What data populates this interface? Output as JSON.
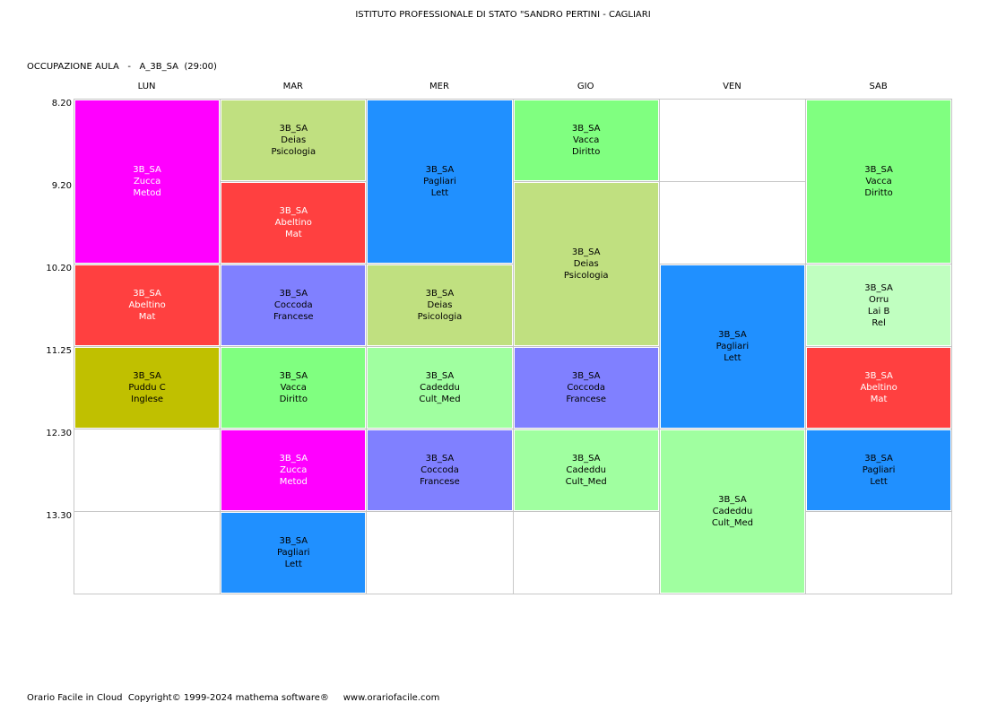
{
  "header": {
    "school": "ISTITUTO PROFESSIONALE DI STATO \"SANDRO PERTINI - CAGLIARI",
    "subtitle": "OCCUPAZIONE AULA   -   A_3B_SA  (29:00)"
  },
  "days": [
    "LUN",
    "MAR",
    "MER",
    "GIO",
    "VEN",
    "SAB"
  ],
  "times": [
    "8.20",
    "9.20",
    "10.20",
    "11.25",
    "12.30",
    "13.30"
  ],
  "lessons": [
    {
      "day": 0,
      "start": 0,
      "span": 2,
      "color": "#ff00ff",
      "text_color": "#ffffff",
      "lines": [
        "3B_SA",
        "Zucca",
        "Metod"
      ]
    },
    {
      "day": 0,
      "start": 2,
      "span": 1,
      "color": "#ff4040",
      "text_color": "#ffffff",
      "lines": [
        "3B_SA",
        "Abeltino",
        "Mat"
      ]
    },
    {
      "day": 0,
      "start": 3,
      "span": 1,
      "color": "#c0c000",
      "text_color": "#000000",
      "lines": [
        "3B_SA",
        "Puddu C",
        "Inglese"
      ]
    },
    {
      "day": 1,
      "start": 0,
      "span": 1,
      "color": "#c0e080",
      "text_color": "#000000",
      "lines": [
        "3B_SA",
        "Deias",
        "Psicologia"
      ]
    },
    {
      "day": 1,
      "start": 1,
      "span": 1,
      "color": "#ff4040",
      "text_color": "#ffffff",
      "lines": [
        "3B_SA",
        "Abeltino",
        "Mat"
      ]
    },
    {
      "day": 1,
      "start": 2,
      "span": 1,
      "color": "#8080ff",
      "text_color": "#000000",
      "lines": [
        "3B_SA",
        "Coccoda",
        "Francese"
      ]
    },
    {
      "day": 1,
      "start": 3,
      "span": 1,
      "color": "#80ff80",
      "text_color": "#000000",
      "lines": [
        "3B_SA",
        "Vacca",
        "Diritto"
      ]
    },
    {
      "day": 1,
      "start": 4,
      "span": 1,
      "color": "#ff00ff",
      "text_color": "#ffffff",
      "lines": [
        "3B_SA",
        "Zucca",
        "Metod"
      ]
    },
    {
      "day": 1,
      "start": 5,
      "span": 1,
      "color": "#2090ff",
      "text_color": "#000000",
      "lines": [
        "3B_SA",
        "Pagliari",
        "Lett"
      ]
    },
    {
      "day": 2,
      "start": 0,
      "span": 2,
      "color": "#2090ff",
      "text_color": "#000000",
      "lines": [
        "3B_SA",
        "Pagliari",
        "Lett"
      ]
    },
    {
      "day": 2,
      "start": 2,
      "span": 1,
      "color": "#c0e080",
      "text_color": "#000000",
      "lines": [
        "3B_SA",
        "Deias",
        "Psicologia"
      ]
    },
    {
      "day": 2,
      "start": 3,
      "span": 1,
      "color": "#a0ffa0",
      "text_color": "#000000",
      "lines": [
        "3B_SA",
        "Cadeddu",
        "Cult_Med"
      ]
    },
    {
      "day": 2,
      "start": 4,
      "span": 1,
      "color": "#8080ff",
      "text_color": "#000000",
      "lines": [
        "3B_SA",
        "Coccoda",
        "Francese"
      ]
    },
    {
      "day": 3,
      "start": 0,
      "span": 1,
      "color": "#80ff80",
      "text_color": "#000000",
      "lines": [
        "3B_SA",
        "Vacca",
        "Diritto"
      ]
    },
    {
      "day": 3,
      "start": 1,
      "span": 2,
      "color": "#c0e080",
      "text_color": "#000000",
      "lines": [
        "3B_SA",
        "Deias",
        "Psicologia"
      ]
    },
    {
      "day": 3,
      "start": 3,
      "span": 1,
      "color": "#8080ff",
      "text_color": "#000000",
      "lines": [
        "3B_SA",
        "Coccoda",
        "Francese"
      ]
    },
    {
      "day": 3,
      "start": 4,
      "span": 1,
      "color": "#a0ffa0",
      "text_color": "#000000",
      "lines": [
        "3B_SA",
        "Cadeddu",
        "Cult_Med"
      ]
    },
    {
      "day": 4,
      "start": 2,
      "span": 2,
      "color": "#2090ff",
      "text_color": "#000000",
      "lines": [
        "3B_SA",
        "Pagliari",
        "Lett"
      ]
    },
    {
      "day": 4,
      "start": 4,
      "span": 2,
      "color": "#a0ffa0",
      "text_color": "#000000",
      "lines": [
        "3B_SA",
        "Cadeddu",
        "Cult_Med"
      ]
    },
    {
      "day": 5,
      "start": 0,
      "span": 2,
      "color": "#80ff80",
      "text_color": "#000000",
      "lines": [
        "3B_SA",
        "Vacca",
        "Diritto"
      ]
    },
    {
      "day": 5,
      "start": 2,
      "span": 1,
      "color": "#c0ffc0",
      "text_color": "#000000",
      "lines": [
        "3B_SA",
        "Orru",
        "Lai B",
        "Rel"
      ]
    },
    {
      "day": 5,
      "start": 3,
      "span": 1,
      "color": "#ff4040",
      "text_color": "#ffffff",
      "lines": [
        "3B_SA",
        "Abeltino",
        "Mat"
      ]
    },
    {
      "day": 5,
      "start": 4,
      "span": 1,
      "color": "#2090ff",
      "text_color": "#000000",
      "lines": [
        "3B_SA",
        "Pagliari",
        "Lett"
      ]
    }
  ],
  "footer": {
    "text": "Orario Facile in Cloud  Copyright© 1999-2024 mathema software®     www.orariofacile.com"
  }
}
